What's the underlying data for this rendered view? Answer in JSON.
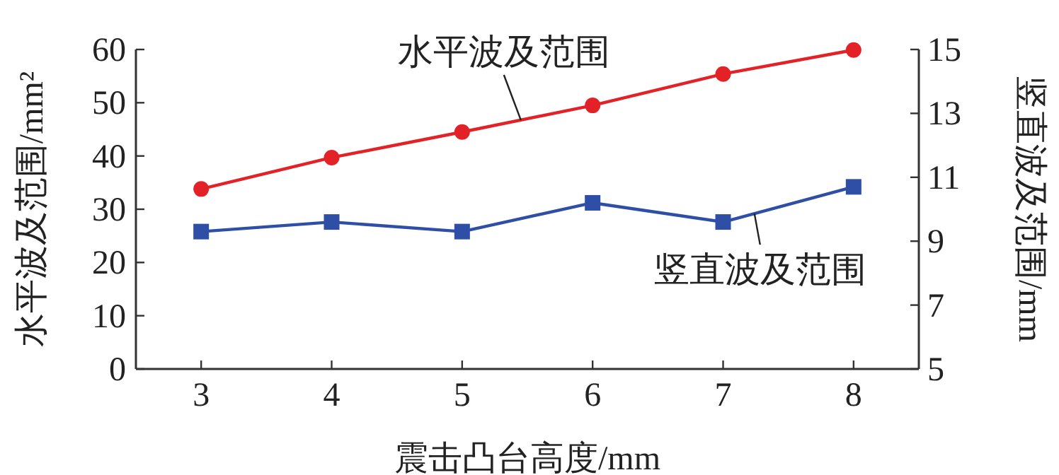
{
  "chart_data": {
    "type": "line",
    "xlabel": "震击凸台高度/mm",
    "ylabel": "水平波及范围/mm²",
    "y2label": "竖直波及范围/mm",
    "x": [
      3,
      4,
      5,
      6,
      7,
      8
    ],
    "series": [
      {
        "name": "水平波及范围",
        "color": "#e32228",
        "marker": "circle",
        "values": [
          33.8,
          39.7,
          44.5,
          49.5,
          55.4,
          59.9
        ]
      },
      {
        "name": "竖直波及范围",
        "color": "#2f4fa6",
        "marker": "square",
        "axis": "y2",
        "values": [
          9.3,
          9.6,
          9.3,
          10.2,
          9.6,
          10.7
        ]
      }
    ],
    "xlim": [
      2.5,
      8.5
    ],
    "xticks": [
      3,
      4,
      5,
      6,
      7,
      8
    ],
    "ylim": [
      0,
      60
    ],
    "yticks": [
      0,
      10,
      20,
      30,
      40,
      50,
      60
    ],
    "y2lim": [
      5,
      15
    ],
    "y2ticks": [
      5,
      7,
      9,
      11,
      13,
      15
    ],
    "grid": false,
    "legend": false,
    "line_style": "solid"
  }
}
